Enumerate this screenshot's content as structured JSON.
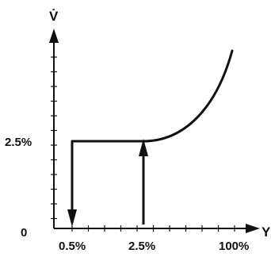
{
  "chart_data": {
    "type": "line",
    "title": "",
    "xlabel": "Y",
    "ylabel": "V̇",
    "xtick_labels": [
      "0.5%",
      "2.5%",
      "100%"
    ],
    "ytick_labels": [
      "0",
      "2.5%"
    ],
    "series": [
      {
        "points": [
          {
            "x": "0.5%",
            "y": "2.5%"
          },
          {
            "x": "2.5%",
            "y": "2.5%"
          },
          {
            "x": "100%",
            "y": "max"
          }
        ]
      }
    ],
    "annotations": [
      {
        "kind": "arrow-down",
        "at_x": "0.5%",
        "from_y": "2.5%",
        "to_y": "0"
      },
      {
        "kind": "arrow-up",
        "at_x": "2.5%",
        "from_y": "0",
        "to_y": "2.5%"
      }
    ],
    "grid": false,
    "legend": "none",
    "colors": {
      "ink": "#111111",
      "background": "#ffffff"
    }
  }
}
